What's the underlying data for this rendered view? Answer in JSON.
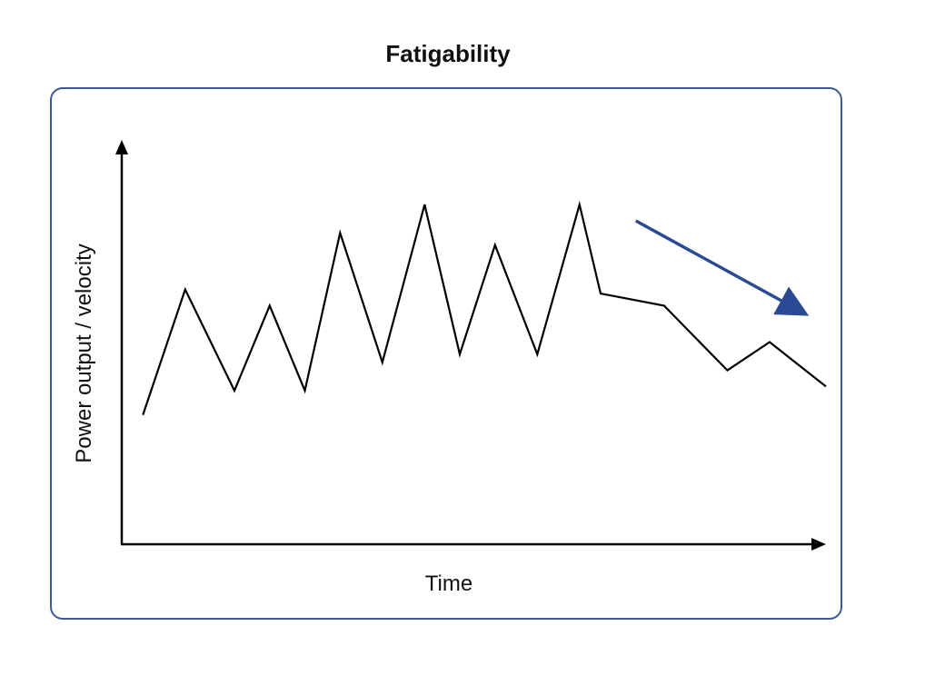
{
  "chart_data": {
    "type": "line",
    "title": "Fatigability",
    "xlabel": "Time",
    "ylabel": "Power output / velocity",
    "grid": false,
    "legend": "none",
    "xlim": [
      0,
      100
    ],
    "ylim": [
      0,
      100
    ],
    "series": [
      {
        "x": [
          3,
          9,
          16,
          21,
          26,
          31,
          37,
          43,
          48,
          53,
          59,
          65,
          68,
          77,
          86,
          92,
          100
        ],
        "y": [
          32,
          63,
          38,
          59,
          38,
          77,
          45,
          84,
          47,
          74,
          47,
          84,
          62,
          59,
          43,
          50,
          39
        ],
        "color": "#000000"
      }
    ],
    "annotations": [
      {
        "type": "trend-arrow",
        "from": [
          73,
          80
        ],
        "to": [
          96,
          58
        ],
        "color": "#2b4a94"
      }
    ]
  }
}
